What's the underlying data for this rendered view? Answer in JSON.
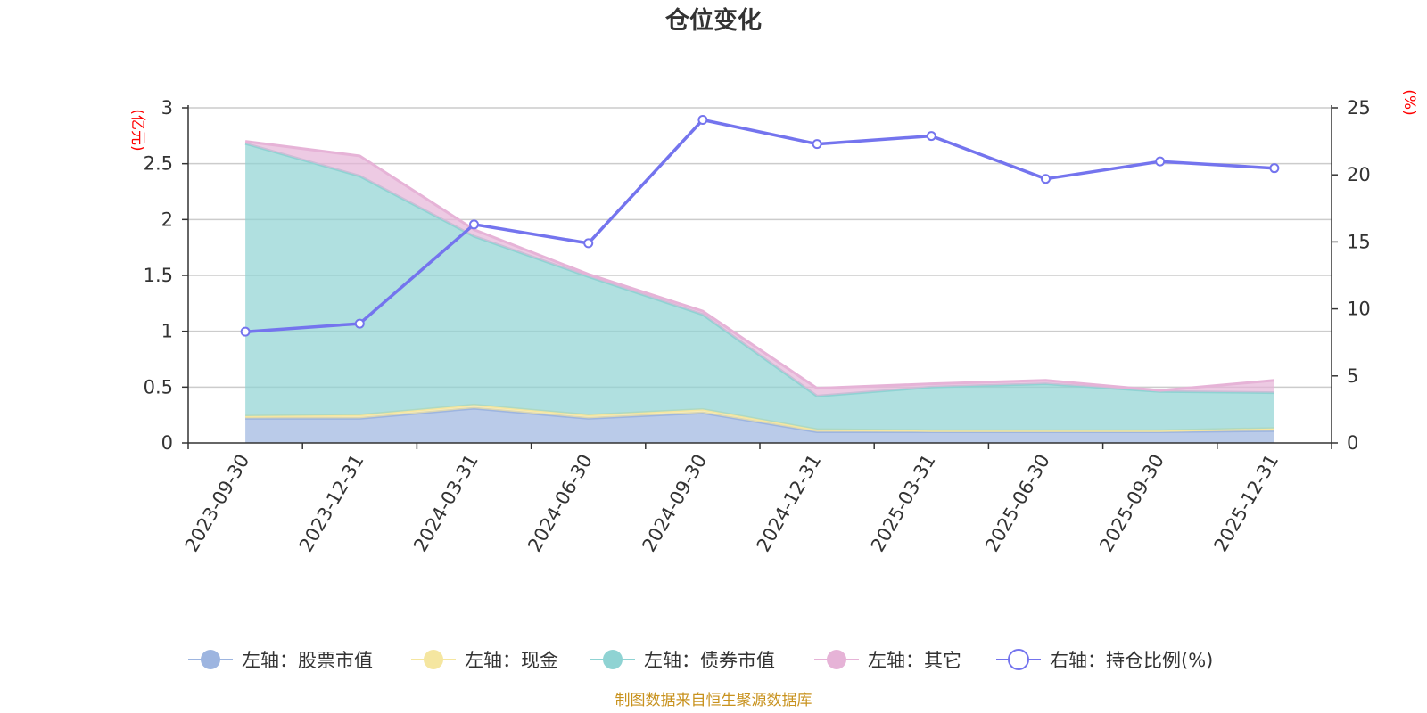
{
  "chart_data": {
    "type": "area",
    "title": "仓位变化",
    "categories": [
      "2023-09-30",
      "2023-12-31",
      "2024-03-31",
      "2024-06-30",
      "2024-09-30",
      "2024-12-31",
      "2025-03-31",
      "2025-06-30",
      "2025-09-30",
      "2025-12-31"
    ],
    "left_axis": {
      "unit": "(亿元)",
      "ylim": [
        0,
        3
      ],
      "ticks": [
        "0",
        "0.5",
        "1",
        "1.5",
        "2",
        "2.5",
        "3"
      ]
    },
    "right_axis": {
      "unit": "(%)",
      "ylim": [
        0,
        25
      ],
      "ticks": [
        "0",
        "5",
        "10",
        "15",
        "20",
        "25"
      ]
    },
    "series": [
      {
        "name": "左轴：股票市值",
        "axis": "left",
        "kind": "stacked-area",
        "color": "#9db5e0",
        "values": [
          0.22,
          0.22,
          0.31,
          0.22,
          0.27,
          0.1,
          0.1,
          0.1,
          0.1,
          0.11
        ]
      },
      {
        "name": "左轴：现金",
        "axis": "left",
        "kind": "stacked-area",
        "color": "#f5e6a0",
        "values": [
          0.02,
          0.03,
          0.03,
          0.03,
          0.03,
          0.02,
          0.01,
          0.01,
          0.01,
          0.02
        ]
      },
      {
        "name": "左轴：债券市值",
        "axis": "left",
        "kind": "stacked-area",
        "color": "#8fd3d3",
        "values": [
          2.44,
          2.14,
          1.51,
          1.24,
          0.85,
          0.3,
          0.39,
          0.42,
          0.35,
          0.32
        ]
      },
      {
        "name": "左轴：其它",
        "axis": "left",
        "kind": "stacked-area",
        "color": "#e6b3d7",
        "values": [
          0.02,
          0.18,
          0.06,
          0.02,
          0.03,
          0.07,
          0.03,
          0.03,
          0.01,
          0.11
        ]
      },
      {
        "name": "右轴：持仓比例(%)",
        "axis": "right",
        "kind": "line",
        "color": "#7474ee",
        "values": [
          8.3,
          8.9,
          16.3,
          14.9,
          24.1,
          22.3,
          22.9,
          19.7,
          21.0,
          20.5
        ]
      }
    ]
  },
  "footer": {
    "source": "制图数据来自恒生聚源数据库"
  }
}
